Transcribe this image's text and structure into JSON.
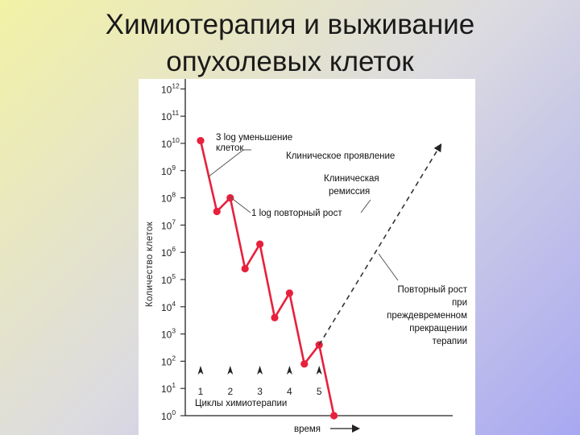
{
  "slide": {
    "title_line1": "Химиотерапия и выживание",
    "title_line2": "опухолевых клеток"
  },
  "chart_data": {
    "type": "line",
    "ylabel": "Количество клеток",
    "xlabel": "время",
    "y_scale": "log10",
    "ylim": [
      1,
      1000000000000
    ],
    "y_ticks": [
      {
        "base": "10",
        "exp": "12"
      },
      {
        "base": "10",
        "exp": "11"
      },
      {
        "base": "10",
        "exp": "10"
      },
      {
        "base": "10",
        "exp": "9"
      },
      {
        "base": "10",
        "exp": "8"
      },
      {
        "base": "10",
        "exp": "7"
      },
      {
        "base": "10",
        "exp": "6"
      },
      {
        "base": "10",
        "exp": "5"
      },
      {
        "base": "10",
        "exp": "4"
      },
      {
        "base": "10",
        "exp": "3"
      },
      {
        "base": "10",
        "exp": "2"
      },
      {
        "base": "10",
        "exp": "1"
      },
      {
        "base": "10",
        "exp": "0"
      }
    ],
    "series": [
      {
        "style": "solid",
        "color": "#e8203c",
        "points": [
          {
            "x": 0.0,
            "y": 10.1
          },
          {
            "x": 0.55,
            "y": 7.5
          },
          {
            "x": 1.0,
            "y": 8.0
          },
          {
            "x": 1.5,
            "y": 5.4
          },
          {
            "x": 2.0,
            "y": 6.3
          },
          {
            "x": 2.5,
            "y": 3.6
          },
          {
            "x": 3.0,
            "y": 4.5
          },
          {
            "x": 3.5,
            "y": 1.9
          },
          {
            "x": 4.0,
            "y": 2.6
          },
          {
            "x": 4.5,
            "y": 0.0
          }
        ]
      },
      {
        "style": "dashed",
        "color": "#333333",
        "points": [
          {
            "x": 4.0,
            "y": 2.6
          },
          {
            "x": 8.1,
            "y": 9.95
          }
        ]
      }
    ],
    "cycle_markers": {
      "label": "Циклы химиотерапии",
      "items": [
        {
          "x": 0.0,
          "label": "1"
        },
        {
          "x": 1.0,
          "label": "2"
        },
        {
          "x": 2.0,
          "label": "3"
        },
        {
          "x": 3.0,
          "label": "4"
        },
        {
          "x": 4.0,
          "label": "5"
        }
      ]
    },
    "annotations": {
      "log3_line1": "3 log уменьшение",
      "log3_line2": "клеток",
      "clinical": "Клиническое проявление",
      "remission_line1": "Клиническая",
      "remission_line2": "ремиссия",
      "regrowth": "1 log повторный рост",
      "regrowth_early": [
        "Повторный рост",
        "при",
        "преждевременном",
        "прекращении",
        "терапии"
      ]
    }
  }
}
